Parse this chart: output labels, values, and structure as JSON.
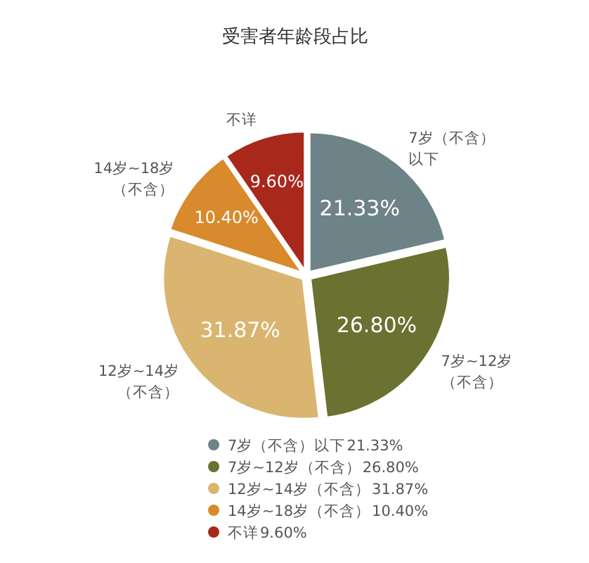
{
  "chart_data": {
    "type": "pie",
    "title": "受害者年龄段占比",
    "categories": [
      "7岁（不含）以下",
      "7岁~12岁（不含）",
      "12岁~14岁（不含）",
      "14岁~18岁（不含）",
      "不详"
    ],
    "values": [
      21.33,
      26.8,
      31.87,
      10.4,
      9.6
    ],
    "value_labels": [
      "21.33%",
      "26.80%",
      "31.87%",
      "10.40%",
      "9.60%"
    ],
    "colors": [
      "#6e8388",
      "#6b7130",
      "#d9b56f",
      "#d98a2c",
      "#a8281c"
    ],
    "legend": "bottom"
  }
}
